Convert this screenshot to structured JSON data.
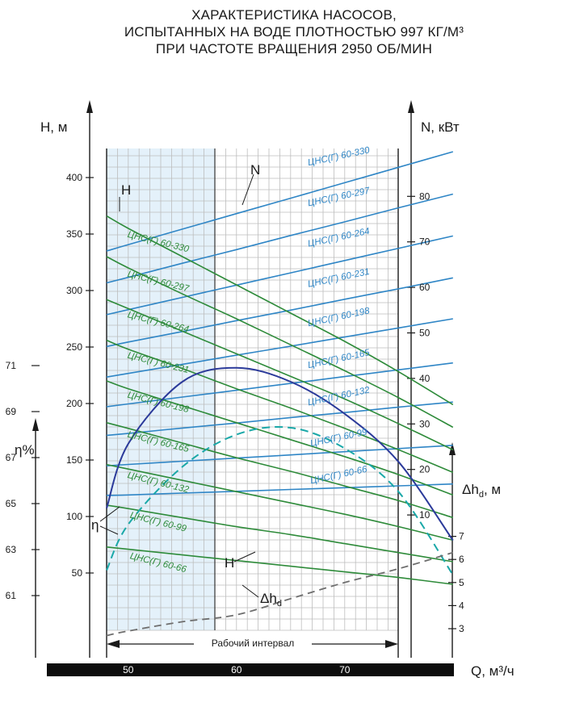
{
  "title_lines": [
    "ХАРАКТЕРИСТИКА НАСОСОВ,",
    "ИСПЫТАННЫХ НА ВОДЕ ПЛОТНОСТЬЮ 997 КГ/М³",
    "ПРИ ЧАСТОТЕ ВРАЩЕНИЯ 2950 ОБ/МИН"
  ],
  "axes": {
    "h_label": "H, м",
    "n_label": "N, кВт",
    "eta_label": "η%",
    "dh_label": "Δh",
    "dh_sub": "d",
    "dh_unit": ", м",
    "q_label": "Q, м³/ч",
    "h_ticks": [
      "50",
      "100",
      "150",
      "200",
      "250",
      "300",
      "350",
      "400"
    ],
    "n_ticks": [
      "10",
      "20",
      "30",
      "40",
      "50",
      "60",
      "70",
      "80"
    ],
    "eta_ticks": [
      "61",
      "63",
      "65",
      "67",
      "69",
      "71"
    ],
    "dh_ticks": [
      "3",
      "4",
      "5",
      "6",
      "7"
    ],
    "q_ticks": [
      "50",
      "60",
      "70"
    ],
    "working_interval": "Рабочий интервал"
  },
  "curve_letters": {
    "h_top": "H",
    "n_top": "N",
    "eta": "η",
    "h_bottom": "H",
    "dh": "Δh",
    "dh_sub": "d"
  },
  "chart_data": {
    "type": "line",
    "x_label": "Q, м³/ч",
    "xlim": [
      47,
      77
    ],
    "working_interval": [
      48,
      80
    ],
    "x": [
      48,
      50,
      55,
      60,
      65,
      70,
      75,
      80
    ],
    "h_axis": {
      "label": "H, м",
      "ylim": [
        0,
        430
      ]
    },
    "n_axis": {
      "label": "N, кВт",
      "ylim": [
        0,
        90
      ]
    },
    "eta_axis": {
      "label": "η%",
      "ylim": [
        59,
        73
      ]
    },
    "dh_axis": {
      "label": "Δh, м",
      "ylim": [
        2.3,
        8.0
      ]
    },
    "head_series": [
      {
        "name": "ЦНС(Г) 60-330",
        "values": [
          366,
          355,
          330,
          305,
          280,
          255,
          228,
          199
        ]
      },
      {
        "name": "ЦНС(Г) 60-297",
        "values": [
          330,
          320,
          297,
          275,
          252,
          229,
          205,
          179
        ]
      },
      {
        "name": "ЦНС(Г) 60-264",
        "values": [
          292,
          284,
          264,
          244,
          224,
          204,
          182,
          159
        ]
      },
      {
        "name": "ЦНС(Г) 60-231",
        "values": [
          256,
          248,
          231,
          213,
          196,
          178,
          159,
          139
        ]
      },
      {
        "name": "ЦНС(Г) 60-198",
        "values": [
          220,
          213,
          198,
          183,
          168,
          153,
          137,
          119
        ]
      },
      {
        "name": "ЦНС(Г) 60-165",
        "values": [
          183,
          178,
          165,
          152,
          140,
          127,
          114,
          99
        ]
      },
      {
        "name": "ЦНС(Г) 60-132",
        "values": [
          146,
          142,
          132,
          122,
          112,
          102,
          91,
          79
        ]
      },
      {
        "name": "ЦНС(Г) 60-99",
        "values": [
          110,
          107,
          99,
          91,
          84,
          76,
          68,
          60
        ]
      },
      {
        "name": "ЦНС(Г) 60-66",
        "values": [
          73,
          71,
          66,
          61,
          56,
          51,
          46,
          40
        ]
      }
    ],
    "power_series": [
      {
        "name": "ЦНС(Г) 60-330",
        "values": [
          68.0,
          69.4,
          72.8,
          76.2,
          79.6,
          83.0,
          86.4,
          89.8
        ]
      },
      {
        "name": "ЦНС(Г) 60-297",
        "values": [
          61.0,
          62.2,
          65.3,
          68.3,
          71.4,
          74.4,
          77.5,
          80.5
        ]
      },
      {
        "name": "ЦНС(Г) 60-264",
        "values": [
          54.0,
          55.1,
          57.8,
          60.5,
          63.2,
          65.9,
          68.6,
          71.3
        ]
      },
      {
        "name": "ЦНС(Г) 60-231",
        "values": [
          47.0,
          48.0,
          50.3,
          52.7,
          55.0,
          57.4,
          59.7,
          62.1
        ]
      },
      {
        "name": "ЦНС(Г) 60-198",
        "values": [
          40.3,
          41.1,
          43.1,
          45.1,
          47.1,
          49.1,
          51.1,
          53.1
        ]
      },
      {
        "name": "ЦНС(Г) 60-165",
        "values": [
          33.8,
          34.4,
          35.9,
          37.4,
          38.9,
          40.4,
          41.9,
          43.4
        ]
      },
      {
        "name": "ЦНС(Г) 60-132",
        "values": [
          27.5,
          27.9,
          29.1,
          30.2,
          31.4,
          32.5,
          33.7,
          34.8
        ]
      },
      {
        "name": "ЦНС(Г) 60-99",
        "values": [
          20.8,
          21.1,
          21.8,
          22.5,
          23.2,
          23.9,
          24.6,
          25.3
        ]
      },
      {
        "name": "ЦНС(Г) 60-66",
        "values": [
          14.3,
          14.4,
          14.8,
          15.2,
          15.6,
          16.0,
          16.4,
          16.8
        ]
      }
    ],
    "efficiency": {
      "solid": [
        64.8,
        67.6,
        70.3,
        70.9,
        70.3,
        68.9,
        66.8,
        63.4
      ],
      "dashed": [
        62.1,
        64.1,
        66.6,
        68.0,
        68.3,
        67.4,
        65.5,
        61.9
      ]
    },
    "npsh_dh": [
      2.7,
      2.9,
      3.3,
      3.6,
      4.3,
      5.0,
      5.6,
      6.3
    ],
    "colors": {
      "head": "#2e8b3a",
      "power": "#2f86c6",
      "eta_solid": "#2b3a9a",
      "eta_dashed": "#1aa8a8",
      "npsh": "#6e6e6e",
      "working_zone": "#e4f1fa",
      "grid": "#bdbdbd"
    }
  }
}
